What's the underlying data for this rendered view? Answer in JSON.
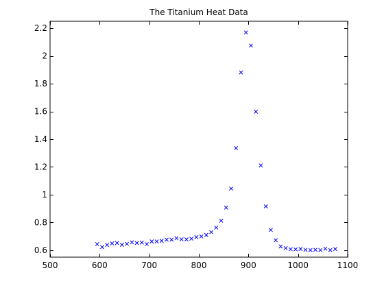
{
  "chart_data": {
    "type": "scatter",
    "title": "The Titanium Heat Data",
    "xlabel": "",
    "ylabel": "",
    "xlim": [
      500,
      1100
    ],
    "ylim": [
      0.55,
      2.25
    ],
    "grid": false,
    "legend": "none",
    "marker": "x",
    "x_ticks": [
      500,
      600,
      700,
      800,
      900,
      1000,
      1100
    ],
    "x_tick_labels": [
      "500",
      "600",
      "700",
      "800",
      "900",
      "1000",
      "1100"
    ],
    "y_ticks": [
      0.6,
      0.8,
      1.0,
      1.2,
      1.4,
      1.6,
      1.8,
      2.0,
      2.2
    ],
    "y_tick_labels": [
      "0.6",
      "0.8",
      "1",
      "1.2",
      "1.4",
      "1.6",
      "1.8",
      "2",
      "2.2"
    ],
    "series": [
      {
        "color": "#0000ff",
        "x": [
          595,
          605,
          615,
          625,
          635,
          645,
          655,
          665,
          675,
          685,
          695,
          705,
          715,
          725,
          735,
          745,
          755,
          765,
          775,
          785,
          795,
          805,
          815,
          825,
          835,
          845,
          855,
          865,
          875,
          885,
          895,
          905,
          915,
          925,
          935,
          945,
          955,
          965,
          975,
          985,
          995,
          1005,
          1015,
          1025,
          1035,
          1045,
          1055,
          1065,
          1075
        ],
        "y": [
          0.644,
          0.622,
          0.638,
          0.649,
          0.652,
          0.639,
          0.646,
          0.657,
          0.652,
          0.655,
          0.644,
          0.663,
          0.663,
          0.668,
          0.676,
          0.676,
          0.686,
          0.679,
          0.678,
          0.683,
          0.694,
          0.699,
          0.71,
          0.73,
          0.763,
          0.812,
          0.907,
          1.044,
          1.336,
          1.881,
          2.169,
          2.075,
          1.598,
          1.211,
          0.916,
          0.746,
          0.672,
          0.627,
          0.615,
          0.607,
          0.606,
          0.609,
          0.603,
          0.601,
          0.603,
          0.601,
          0.611,
          0.601,
          0.608
        ]
      }
    ]
  }
}
